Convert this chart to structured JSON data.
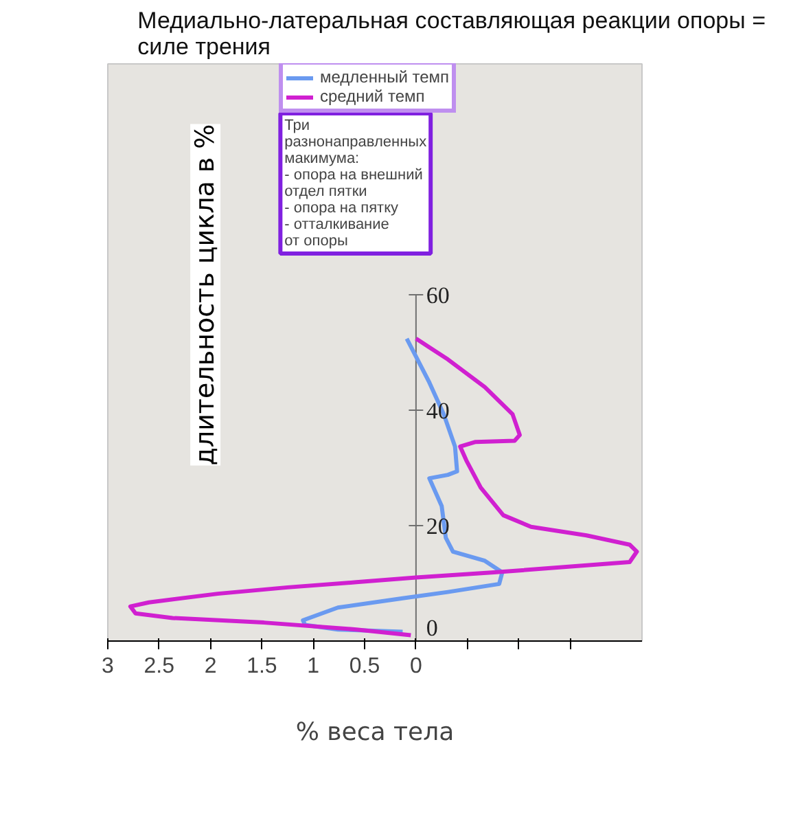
{
  "chart_data": {
    "type": "line",
    "title": "Медиально-латеральная составляющая реакции опоры = силе трения",
    "xlabel": "% веса тела",
    "ylabel": "длительность цикла в %",
    "xlim": [
      3,
      -2.2
    ],
    "xticks": [
      3,
      2.5,
      2,
      1.5,
      1,
      0.5,
      0,
      {
        "value": -0.5,
        "label": null
      },
      {
        "value": -1,
        "label": null
      },
      {
        "value": -1.5,
        "label": null
      }
    ],
    "ylim": [
      0,
      100
    ],
    "yticks": [
      0,
      20,
      40,
      60
    ],
    "grid": false,
    "legend": "top",
    "marker": "none",
    "line_style": "solid",
    "annotations": [
      "Три\nразнонаправленных\nмакимума:\n- опора на внешний\n  отдел пятки\n- опора на пятку\n- отталкивание\n  от опоры"
    ],
    "series": [
      {
        "name": "медленный темп",
        "color": "#6a9af0",
        "x": [
          0.13,
          0.76,
          1.08,
          1.1,
          0.76,
          0.13,
          -0.31,
          -0.81,
          -0.84,
          -0.67,
          -0.36,
          -0.29,
          -0.25,
          -0.13,
          -0.31,
          -0.4,
          -0.38,
          -0.27,
          -0.13,
          0.09
        ],
        "values": [
          1.6,
          2.0,
          2.8,
          3.6,
          5.8,
          7.4,
          8.5,
          9.9,
          11.9,
          13.9,
          15.5,
          17.9,
          23.4,
          28.2,
          28.8,
          29.4,
          33.7,
          39.3,
          44.8,
          52.4
        ]
      },
      {
        "name": "средний темп",
        "color": "#d020d0",
        "x": [
          0.05,
          0.58,
          1.48,
          2.37,
          2.73,
          2.78,
          2.6,
          1.93,
          1.25,
          0.58,
          0,
          -0.76,
          -2.08,
          -2.15,
          -2.08,
          -1.66,
          -1.12,
          -0.85,
          -0.63,
          -0.49,
          -0.43,
          -0.58,
          -0.96,
          -1.01,
          -0.94,
          -0.67,
          -0.31,
          0
        ],
        "values": [
          1.0,
          2.0,
          3.2,
          4.0,
          4.8,
          6.0,
          6.7,
          8.2,
          9.3,
          10.2,
          11.0,
          11.9,
          13.7,
          15.5,
          16.7,
          18.3,
          19.8,
          21.8,
          26.6,
          31.3,
          33.7,
          34.5,
          34.7,
          35.7,
          39.3,
          44.0,
          48.8,
          52.4
        ]
      }
    ]
  }
}
